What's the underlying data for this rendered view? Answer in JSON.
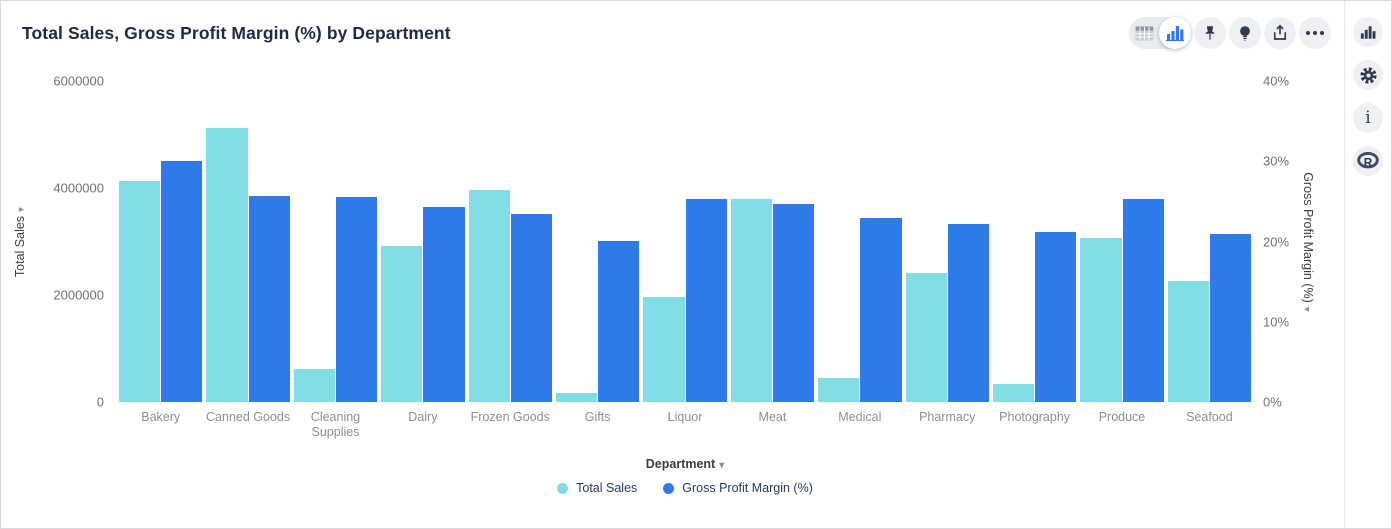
{
  "header": {
    "title": "Total Sales, Gross Profit Margin (%) by Department"
  },
  "toolbar": {
    "toggle": {
      "options": [
        "table-view",
        "chart-view"
      ],
      "selected": "chart-view"
    },
    "buttons": [
      "pin",
      "lightbulb",
      "share",
      "more-options"
    ]
  },
  "rail": {
    "buttons": [
      "chart-settings",
      "settings-gear",
      "info",
      "r-language"
    ]
  },
  "icons": {
    "caret_down": "▾",
    "info": "i",
    "r_logo": "R"
  },
  "colors": {
    "total_sales": "#82dde6",
    "gross_profit_margin": "#2f7bec",
    "icon_navy": "#2c3a52",
    "accent_blue": "#2f7bec"
  },
  "chart_data": {
    "type": "bar",
    "title": "Total Sales, Gross Profit Margin (%) by Department",
    "categories": [
      "Bakery",
      "Canned Goods",
      "Cleaning Supplies",
      "Dairy",
      "Frozen Goods",
      "Gifts",
      "Liquor",
      "Meat",
      "Medical",
      "Pharmacy",
      "Photography",
      "Produce",
      "Seafood"
    ],
    "series": [
      {
        "name": "Total Sales",
        "axis": "left",
        "color": "#82dde6",
        "values": [
          4140000,
          5130000,
          620000,
          2920000,
          3960000,
          170000,
          1960000,
          3790000,
          440000,
          2410000,
          330000,
          3070000,
          2270000
        ]
      },
      {
        "name": "Gross Profit Margin (%)",
        "axis": "right",
        "color": "#2f7bec",
        "values": [
          30.0,
          25.7,
          25.6,
          24.3,
          23.4,
          20.1,
          25.3,
          24.7,
          22.9,
          22.2,
          21.2,
          25.3,
          20.9
        ]
      }
    ],
    "left_axis": {
      "label": "Total Sales",
      "ticks": [
        "0",
        "2000000",
        "4000000",
        "6000000"
      ],
      "min": 0,
      "max": 6000000
    },
    "right_axis": {
      "label": "Gross Profit Margin (%)",
      "ticks": [
        "0%",
        "10%",
        "20%",
        "30%",
        "40%"
      ],
      "min": 0,
      "max": 40
    },
    "xlabel": "Department",
    "legend": [
      {
        "label": "Total Sales",
        "color": "#82dde6"
      },
      {
        "label": "Gross Profit Margin (%)",
        "color": "#2f7bec"
      }
    ],
    "grid": false,
    "legend_position": "bottom-center"
  }
}
